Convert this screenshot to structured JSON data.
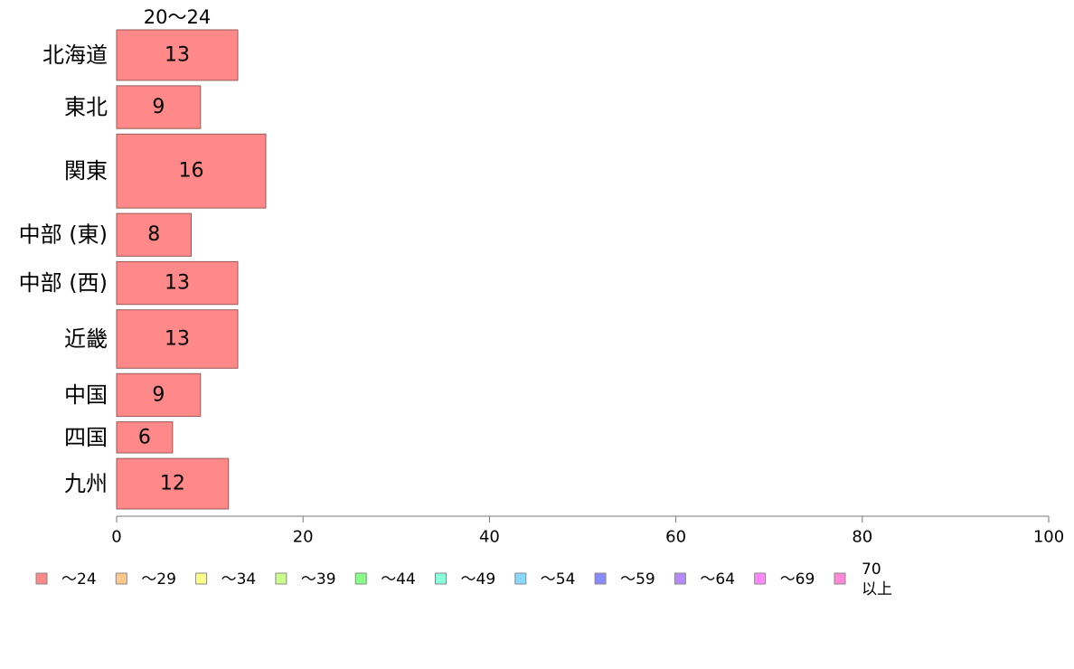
{
  "chart_data": {
    "type": "bar",
    "orientation": "horizontal",
    "top_label": "20〜24",
    "categories": [
      "北海道",
      "東北",
      "関東",
      "中部 (東)",
      "中部 (西)",
      "近畿",
      "中国",
      "四国",
      "九州"
    ],
    "bar_weights": [
      13,
      11,
      19,
      11,
      11,
      15,
      11,
      8,
      13
    ],
    "series": [
      {
        "name": "〜24",
        "values": [
          13,
          9,
          16,
          8,
          13,
          13,
          9,
          6,
          12
        ],
        "color": "#ff8888"
      }
    ],
    "xlim": [
      0,
      100
    ],
    "x_ticks": [
      0,
      20,
      40,
      60,
      80,
      100
    ],
    "x_tick_labels": [
      "0",
      "20",
      "40",
      "60",
      "80",
      "100"
    ],
    "legend": [
      {
        "label": "〜24",
        "color": "#ff8888"
      },
      {
        "label": "〜29",
        "color": "#ffc888"
      },
      {
        "label": "〜34",
        "color": "#ffff88"
      },
      {
        "label": "〜39",
        "color": "#c8ff88"
      },
      {
        "label": "〜44",
        "color": "#88ff88"
      },
      {
        "label": "〜49",
        "color": "#88ffd8"
      },
      {
        "label": "〜54",
        "color": "#88d8ff"
      },
      {
        "label": "〜59",
        "color": "#8888ff"
      },
      {
        "label": "〜64",
        "color": "#b888ff"
      },
      {
        "label": "〜69",
        "color": "#ff88ff"
      },
      {
        "label": [
          "70",
          "以上"
        ],
        "color": "#ff88d8"
      }
    ],
    "legend_position": "bottom",
    "grid": false
  }
}
